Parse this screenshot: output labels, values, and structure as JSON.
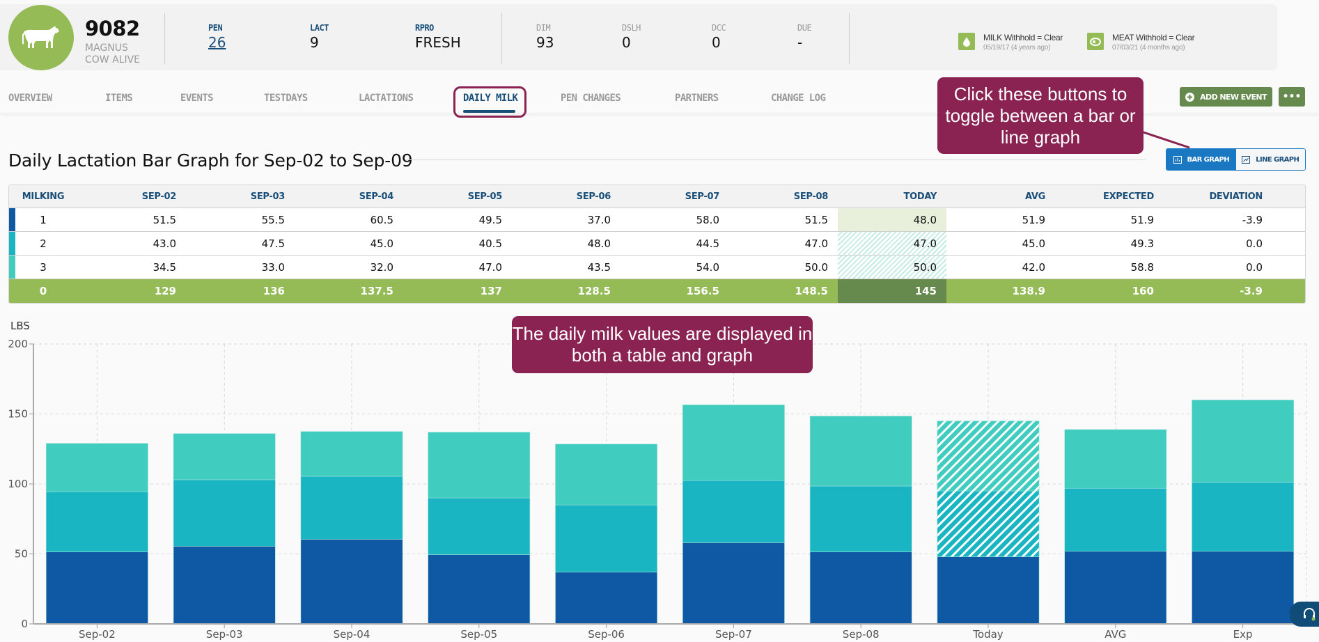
{
  "header": {
    "cow_id": "9082",
    "cow_name": "MAGNUS",
    "cow_status": "COW ALIVE",
    "stats_primary": [
      {
        "label": "PEN",
        "value": "26",
        "link": true
      },
      {
        "label": "LACT",
        "value": "9"
      },
      {
        "label": "RPRO",
        "value": "FRESH"
      }
    ],
    "stats_secondary": [
      {
        "label": "DIM",
        "value": "93"
      },
      {
        "label": "DSLH",
        "value": "0"
      },
      {
        "label": "DCC",
        "value": "0"
      },
      {
        "label": "DUE",
        "value": "-"
      }
    ],
    "withholds": [
      {
        "icon": "milk-drop-icon",
        "title": "MILK Withhold = Clear",
        "sub": "05/19/17 (4 years ago)"
      },
      {
        "icon": "meat-steak-icon",
        "title": "MEAT Withhold = Clear",
        "sub": "07/03/21 (4 months ago)"
      }
    ]
  },
  "tabs": [
    {
      "label": "OVERVIEW"
    },
    {
      "label": "ITEMS"
    },
    {
      "label": "EVENTS"
    },
    {
      "label": "TESTDAYS"
    },
    {
      "label": "LACTATIONS"
    },
    {
      "label": "DAILY MILK",
      "active": true
    },
    {
      "label": "PEN CHANGES"
    },
    {
      "label": "PARTNERS"
    },
    {
      "label": "CHANGE LOG"
    }
  ],
  "actions": {
    "add_event": "ADD NEW EVENT",
    "more": "•••"
  },
  "callouts": {
    "toggle": "Click these buttons to toggle between a bar or line graph",
    "table": "The daily milk values are displayed in both a table and graph"
  },
  "section": {
    "title": "Daily Lactation Bar Graph for Sep-02 to Sep-09",
    "toggle_bar": "BAR GRAPH",
    "toggle_line": "LINE GRAPH"
  },
  "table": {
    "columns": [
      "MILKING",
      "SEP-02",
      "SEP-03",
      "SEP-04",
      "SEP-05",
      "SEP-06",
      "SEP-07",
      "SEP-08",
      "TODAY",
      "AVG",
      "EXPECTED",
      "DEVIATION"
    ],
    "rows": [
      {
        "milking": "1",
        "color": "#0f58a3",
        "values": [
          "51.5",
          "55.5",
          "60.5",
          "49.5",
          "37.0",
          "58.0",
          "51.5",
          "48.0",
          "51.9",
          "51.9",
          "-3.9"
        ]
      },
      {
        "milking": "2",
        "color": "#19b5c2",
        "values": [
          "43.0",
          "47.5",
          "45.0",
          "40.5",
          "48.0",
          "44.5",
          "47.0",
          "47.0",
          "45.0",
          "49.3",
          "0.0"
        ]
      },
      {
        "milking": "3",
        "color": "#40cdbf",
        "values": [
          "34.5",
          "33.0",
          "32.0",
          "47.0",
          "43.5",
          "54.0",
          "50.0",
          "50.0",
          "42.0",
          "58.8",
          "0.0"
        ]
      }
    ],
    "total": {
      "milking": "0",
      "values": [
        "129",
        "136",
        "137.5",
        "137",
        "128.5",
        "156.5",
        "148.5",
        "145",
        "138.9",
        "160",
        "-3.9"
      ]
    }
  },
  "colors": {
    "milking1": "#0f58a3",
    "milking2": "#19b5c2",
    "milking3": "#40cdbf",
    "brand_green": "#95bb56",
    "dark_green": "#668a4d",
    "callout": "#8a2252",
    "accent_blue": "#1a78c2"
  },
  "chart_data": {
    "type": "bar",
    "stacked": true,
    "title": "Daily Lactation Bar Graph for Sep-02 to Sep-09",
    "ylabel": "LBS",
    "xlabel": "",
    "ylim": [
      0,
      200
    ],
    "yticks": [
      0,
      50,
      100,
      150,
      200
    ],
    "grid": true,
    "categories": [
      "Sep-02",
      "Sep-03",
      "Sep-04",
      "Sep-05",
      "Sep-06",
      "Sep-07",
      "Sep-08",
      "Today",
      "AVG",
      "Exp"
    ],
    "series": [
      {
        "name": "Milking 1",
        "color": "#0f58a3",
        "values": [
          51.5,
          55.5,
          60.5,
          49.5,
          37.0,
          58.0,
          51.5,
          48.0,
          51.9,
          51.9
        ]
      },
      {
        "name": "Milking 2",
        "color": "#19b5c2",
        "values": [
          43.0,
          47.5,
          45.0,
          40.5,
          48.0,
          44.5,
          47.0,
          47.0,
          45.0,
          49.3
        ]
      },
      {
        "name": "Milking 3",
        "color": "#40cdbf",
        "values": [
          34.5,
          33.0,
          32.0,
          47.0,
          43.5,
          54.0,
          50.0,
          50.0,
          42.0,
          58.8
        ]
      }
    ],
    "hatched_categories": [
      "Today"
    ]
  }
}
